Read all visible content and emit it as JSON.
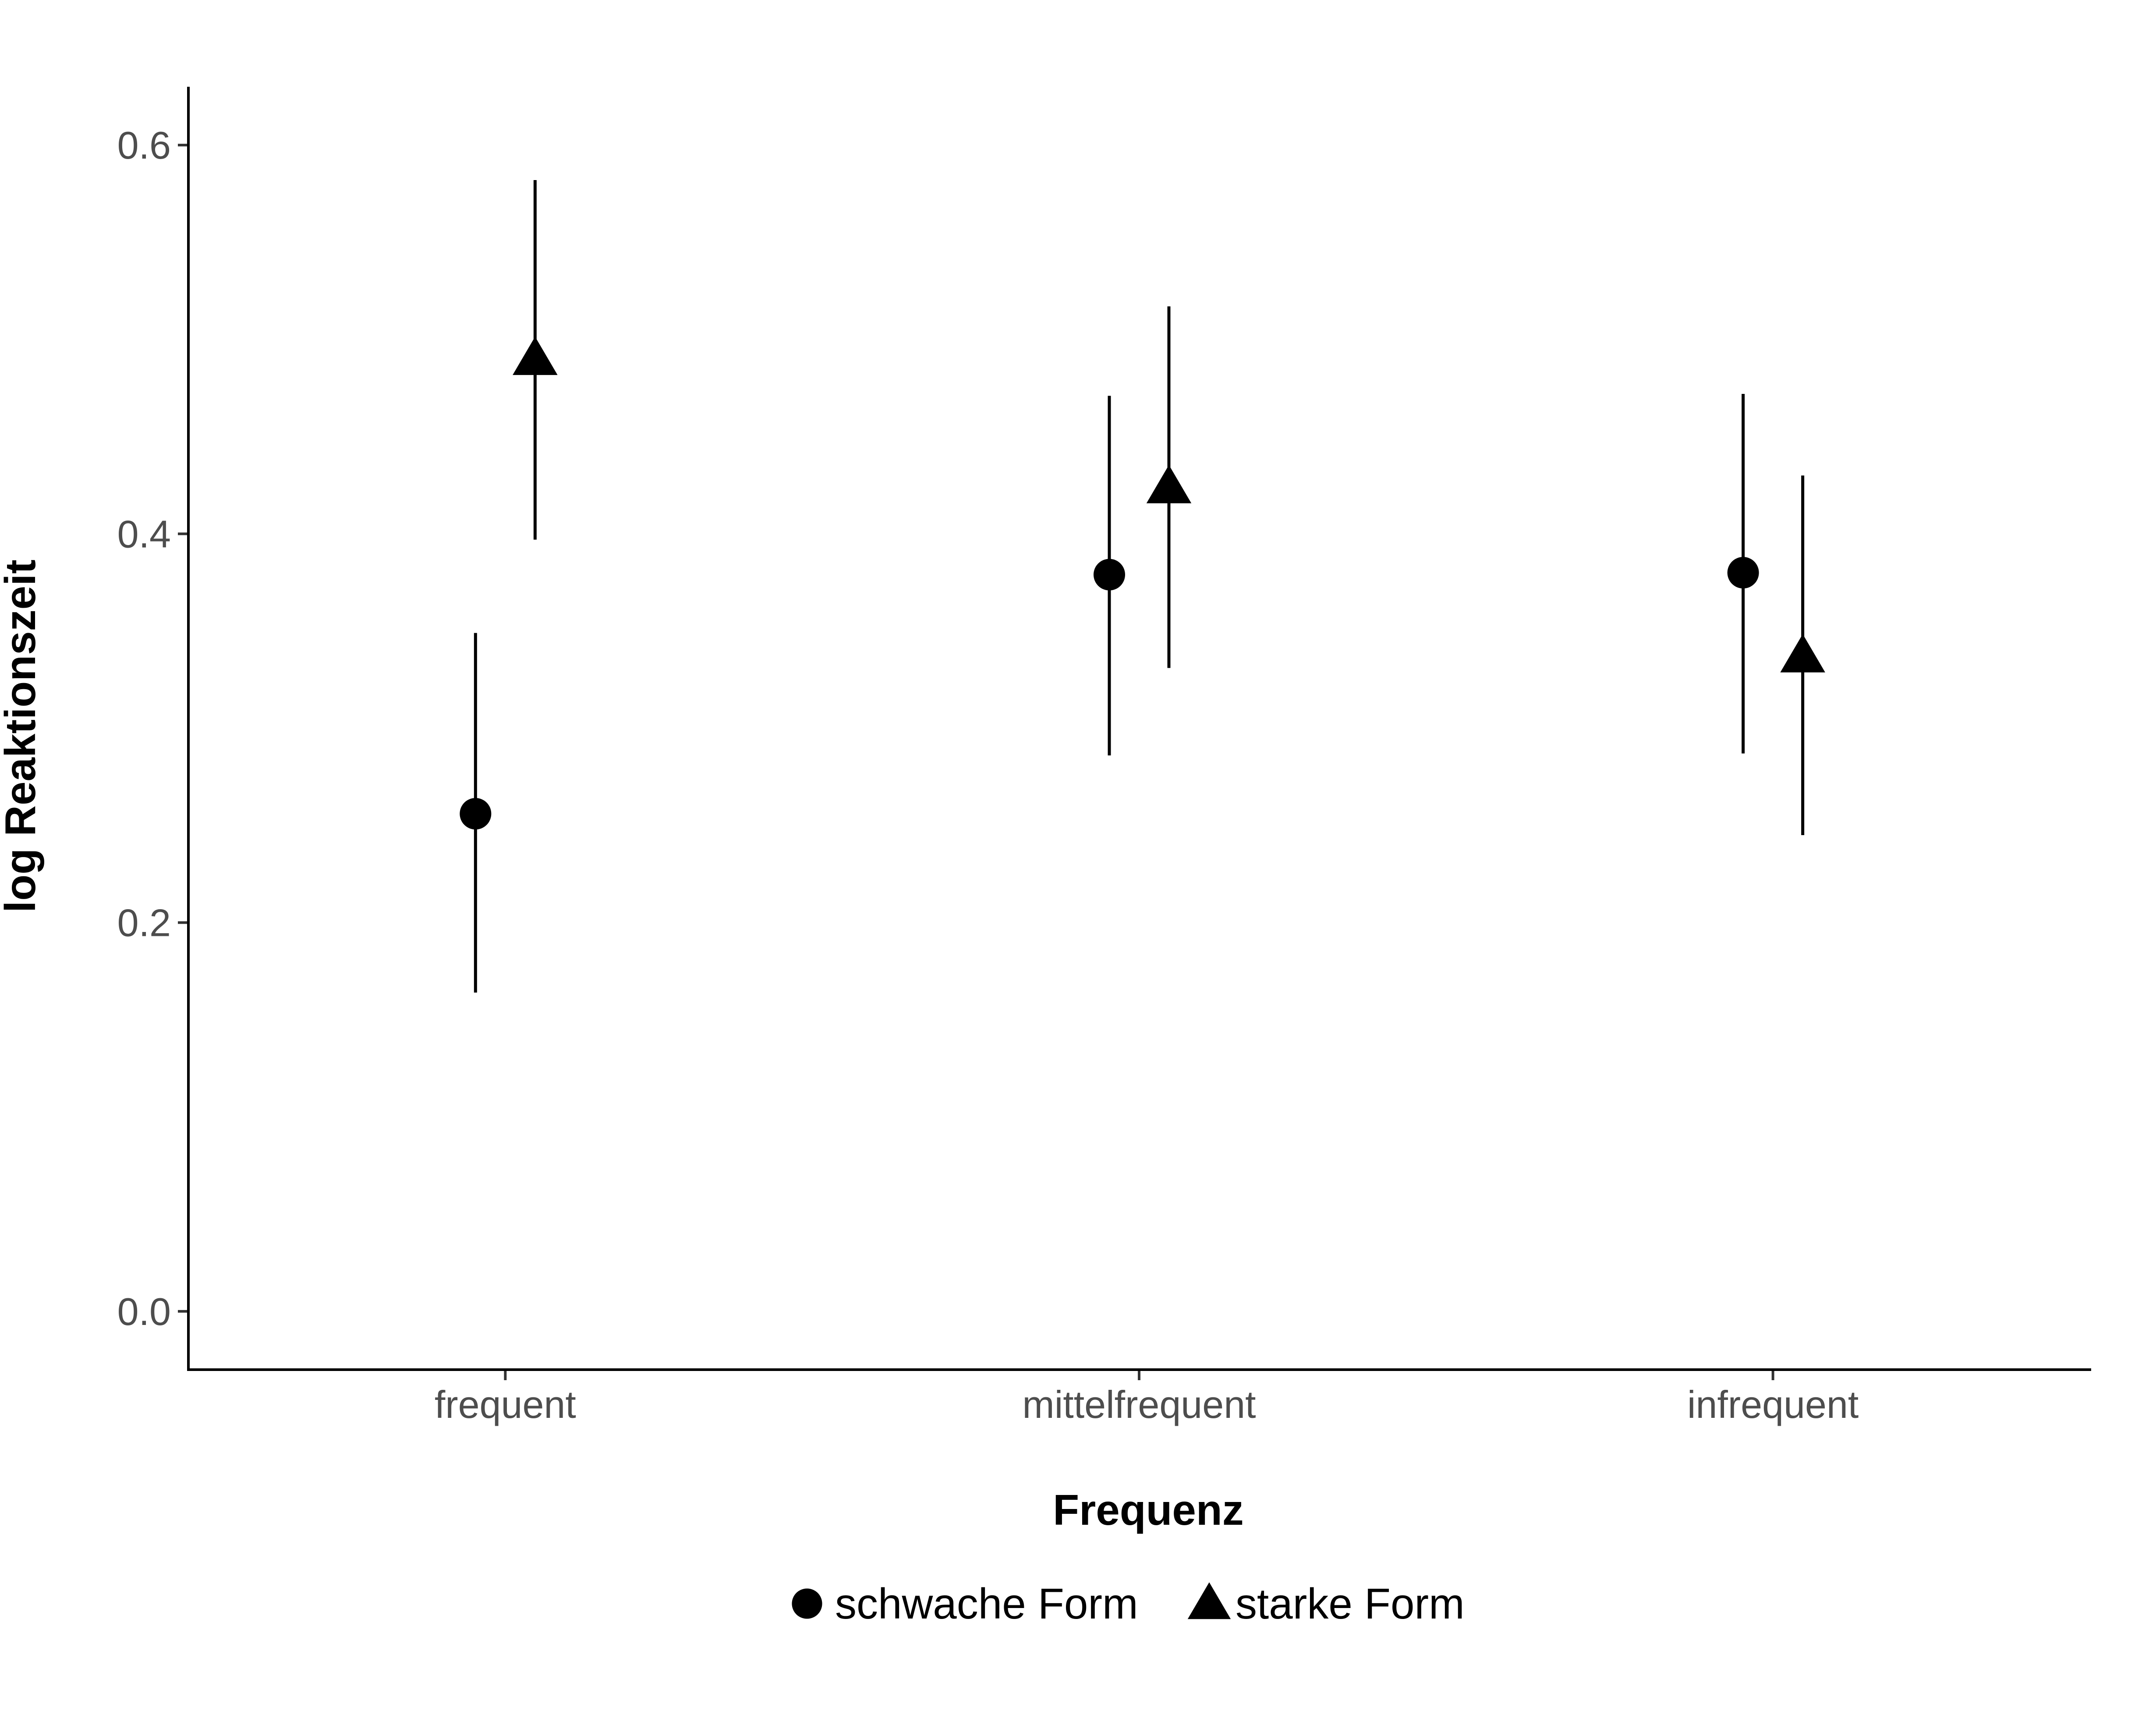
{
  "chart_data": {
    "type": "scatter",
    "xlabel": "Frequenz",
    "ylabel": "log Reaktionszeit",
    "categories": [
      "frequent",
      "mittelfrequent",
      "infrequent"
    ],
    "ylim": [
      -0.03,
      0.63
    ],
    "yticks": [
      0.0,
      0.2,
      0.4,
      0.6
    ],
    "ytick_labels": [
      "0.0",
      "0.2",
      "0.4",
      "0.6"
    ],
    "grid": false,
    "legend_position": "bottom",
    "series": [
      {
        "name": "schwache Form",
        "marker": "circle",
        "values": [
          0.256,
          0.379,
          0.38
        ],
        "lower": [
          0.164,
          0.286,
          0.287
        ],
        "upper": [
          0.349,
          0.471,
          0.472
        ]
      },
      {
        "name": "starke Form",
        "marker": "triangle",
        "values": [
          0.49,
          0.424,
          0.337
        ],
        "lower": [
          0.397,
          0.331,
          0.245
        ],
        "upper": [
          0.582,
          0.517,
          0.43
        ]
      }
    ]
  }
}
